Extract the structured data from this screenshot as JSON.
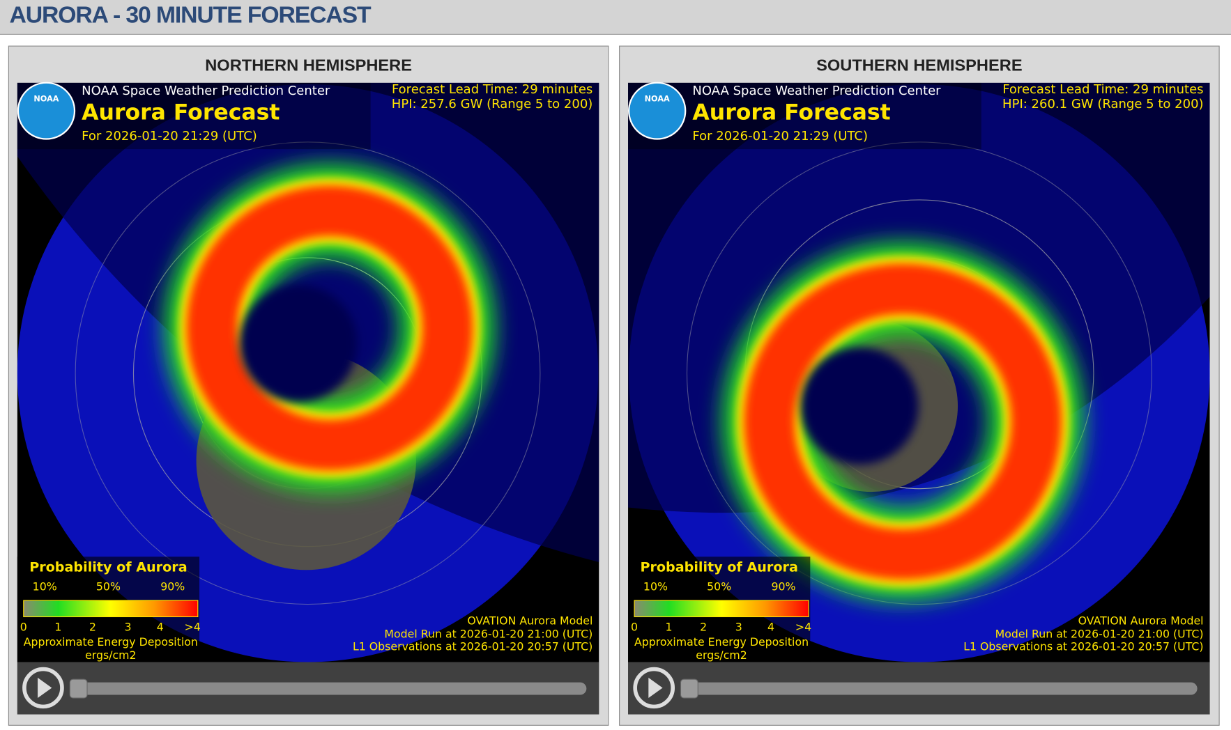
{
  "header": {
    "title": "AURORA - 30 MINUTE FORECAST"
  },
  "panels": [
    {
      "title": "NORTHERN HEMISPHERE",
      "logo": "NOAA",
      "agency": "NOAA Space Weather Prediction Center",
      "heading": "Aurora Forecast",
      "for": "For 2026-01-20 21:29 (UTC)",
      "lead_time": "Forecast Lead Time:  29 minutes",
      "hpi": "HPI: 257.6 GW (Range 5 to 200)",
      "legend": {
        "title": "Probability of Aurora",
        "percent_labels": [
          "10%",
          "50%",
          "90%"
        ],
        "scale_labels": [
          "0",
          "1",
          "2",
          "3",
          "4",
          ">4"
        ],
        "caption": "Approximate Energy Deposition",
        "unit": "ergs/cm2"
      },
      "model": "OVATION Aurora Model",
      "model_run": "Model Run at 2026-01-20 21:00 (UTC)",
      "observations": "L1 Observations at 2026-01-20 20:57 (UTC)"
    },
    {
      "title": "SOUTHERN HEMISPHERE",
      "logo": "NOAA",
      "agency": "NOAA Space Weather Prediction Center",
      "heading": "Aurora Forecast",
      "for": "For 2026-01-20 21:29 (UTC)",
      "lead_time": "Forecast Lead Time:  29 minutes",
      "hpi": "HPI: 260.1 GW (Range 5 to 200)",
      "legend": {
        "title": "Probability of Aurora",
        "percent_labels": [
          "10%",
          "50%",
          "90%"
        ],
        "scale_labels": [
          "0",
          "1",
          "2",
          "3",
          "4",
          ">4"
        ],
        "caption": "Approximate Energy Deposition",
        "unit": "ergs/cm2"
      },
      "model": "OVATION Aurora Model",
      "model_run": "Model Run at 2026-01-20 21:00 (UTC)",
      "observations": "L1 Observations at 2026-01-20 20:57 (UTC)"
    }
  ]
}
